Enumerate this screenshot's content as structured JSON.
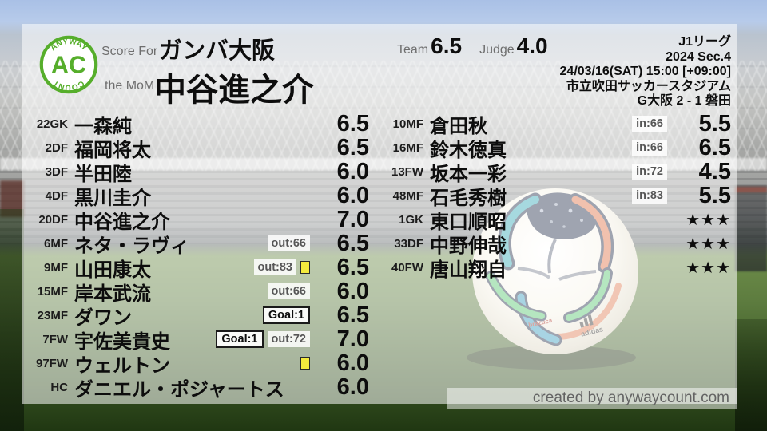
{
  "logo": {
    "initials": "AC",
    "arc_top": "ANYWAY",
    "arc_bottom": "COUNT",
    "color": "#56ae2b"
  },
  "header": {
    "score_for_label": "Score For",
    "team_name": "ガンバ大阪",
    "mom_label": "the MoM",
    "mom_name": "中谷進之介",
    "team_label": "Team",
    "team_score": "6.5",
    "judge_label": "Judge",
    "judge_score": "4.0",
    "meta_lines": [
      "J1リーグ",
      "2024 Sec.4",
      "24/03/16(SAT) 15:00 [+09:00]",
      "市立吹田サッカースタジアム",
      "G大阪 2 - 1 磐田"
    ]
  },
  "left_players": [
    {
      "pos": "22GK",
      "name": "一森純",
      "badges": [],
      "yellow": false,
      "rating": "6.5",
      "stars": false
    },
    {
      "pos": "2DF",
      "name": "福岡将太",
      "badges": [],
      "yellow": false,
      "rating": "6.5",
      "stars": false
    },
    {
      "pos": "3DF",
      "name": "半田陸",
      "badges": [],
      "yellow": false,
      "rating": "6.0",
      "stars": false
    },
    {
      "pos": "4DF",
      "name": "黒川圭介",
      "badges": [],
      "yellow": false,
      "rating": "6.0",
      "stars": false
    },
    {
      "pos": "20DF",
      "name": "中谷進之介",
      "badges": [],
      "yellow": false,
      "rating": "7.0",
      "stars": false
    },
    {
      "pos": "6MF",
      "name": "ネタ・ラヴィ",
      "badges": [
        {
          "style": "plain",
          "label": "out:66"
        }
      ],
      "yellow": false,
      "rating": "6.5",
      "stars": false
    },
    {
      "pos": "9MF",
      "name": "山田康太",
      "badges": [
        {
          "style": "plain",
          "label": "out:83"
        }
      ],
      "yellow": true,
      "rating": "6.5",
      "stars": false
    },
    {
      "pos": "15MF",
      "name": "岸本武流",
      "badges": [
        {
          "style": "plain",
          "label": "out:66"
        }
      ],
      "yellow": false,
      "rating": "6.0",
      "stars": false
    },
    {
      "pos": "23MF",
      "name": "ダワン",
      "badges": [
        {
          "style": "boxed",
          "label": "Goal:1"
        }
      ],
      "yellow": false,
      "rating": "6.5",
      "stars": false
    },
    {
      "pos": "7FW",
      "name": "宇佐美貴史",
      "badges": [
        {
          "style": "boxed",
          "label": "Goal:1"
        },
        {
          "style": "plain",
          "label": "out:72"
        }
      ],
      "yellow": false,
      "rating": "7.0",
      "stars": false
    },
    {
      "pos": "97FW",
      "name": "ウェルトン",
      "badges": [],
      "yellow": true,
      "rating": "6.0",
      "stars": false
    },
    {
      "pos": "HC",
      "name": "ダニエル・ポジャートス",
      "badges": [],
      "yellow": false,
      "rating": "6.0",
      "stars": false
    }
  ],
  "right_players": [
    {
      "pos": "10MF",
      "name": "倉田秋",
      "badges": [
        {
          "style": "plain",
          "label": "in:66"
        }
      ],
      "yellow": false,
      "rating": "5.5",
      "stars": false
    },
    {
      "pos": "16MF",
      "name": "鈴木徳真",
      "badges": [
        {
          "style": "plain",
          "label": "in:66"
        }
      ],
      "yellow": false,
      "rating": "6.5",
      "stars": false
    },
    {
      "pos": "13FW",
      "name": "坂本一彩",
      "badges": [
        {
          "style": "plain",
          "label": "in:72"
        }
      ],
      "yellow": false,
      "rating": "4.5",
      "stars": false
    },
    {
      "pos": "48MF",
      "name": "石毛秀樹",
      "badges": [
        {
          "style": "plain",
          "label": "in:83"
        }
      ],
      "yellow": false,
      "rating": "5.5",
      "stars": false
    },
    {
      "pos": "1GK",
      "name": "東口順昭",
      "badges": [],
      "yellow": false,
      "rating": "★★★",
      "stars": true
    },
    {
      "pos": "33DF",
      "name": "中野伸哉",
      "badges": [],
      "yellow": false,
      "rating": "★★★",
      "stars": true
    },
    {
      "pos": "40FW",
      "name": "唐山翔自",
      "badges": [],
      "yellow": false,
      "rating": "★★★",
      "stars": true
    }
  ],
  "footer": {
    "credit": "created by anywaycount.com"
  },
  "colors": {
    "logo_green": "#56ae2b",
    "yellow_card": "#f4ea3d",
    "text_dark": "#0d0d0d",
    "label_gray": "#6e6e6e",
    "badge_gray": "#565656",
    "ball_teal": "#3aacb8",
    "ball_orange": "#e0764c",
    "ball_green": "#5cc873",
    "ball_navy": "#2a3550"
  }
}
